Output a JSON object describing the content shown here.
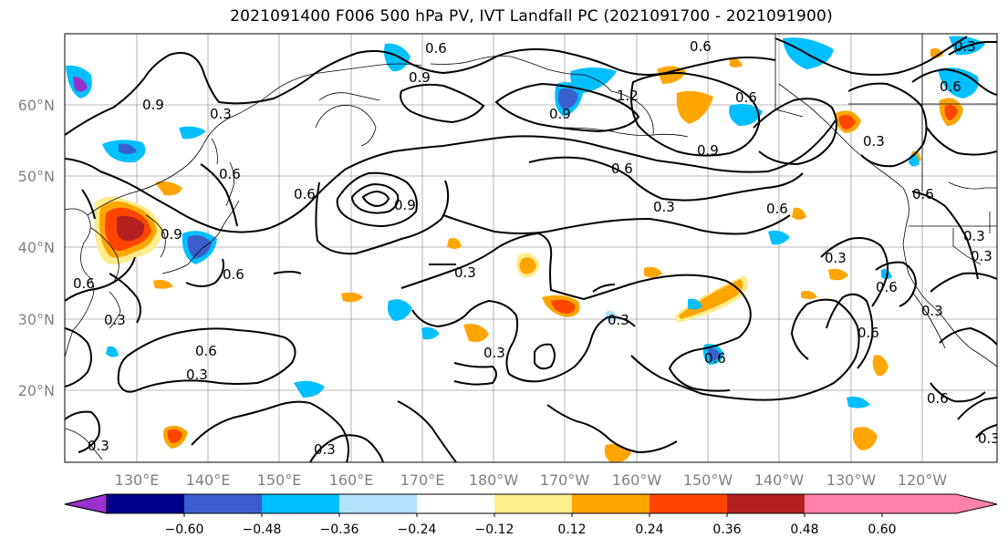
{
  "title": "2021091400 F006 500 hPa PV, IVT Landfall PC (2021091700 - 2021091900)",
  "map": {
    "lat_labels": [
      "60°N",
      "50°N",
      "40°N",
      "30°N",
      "20°N"
    ],
    "lon_labels": [
      "130°E",
      "140°E",
      "150°E",
      "160°E",
      "170°E",
      "180°W",
      "170°W",
      "160°W",
      "150°W",
      "140°W",
      "130°W",
      "120°W"
    ],
    "contour_labels": [
      {
        "text": "0.9"
      },
      {
        "text": "0.6"
      },
      {
        "text": "0.9"
      },
      {
        "text": "1.2"
      },
      {
        "text": "0.9"
      },
      {
        "text": "0.6"
      },
      {
        "text": "0.9"
      },
      {
        "text": "0.3"
      },
      {
        "text": "0.6"
      },
      {
        "text": "0.6"
      },
      {
        "text": "0.9"
      },
      {
        "text": "0.3"
      },
      {
        "text": "0.6"
      },
      {
        "text": "0.3"
      },
      {
        "text": "0.6"
      },
      {
        "text": "0.3"
      },
      {
        "text": "0.6"
      },
      {
        "text": "0.3"
      },
      {
        "text": "0.6"
      },
      {
        "text": "0.3"
      },
      {
        "text": "0.6"
      },
      {
        "text": "0.3"
      },
      {
        "text": "0.3"
      },
      {
        "text": "0.6"
      },
      {
        "text": "0.3"
      },
      {
        "text": "0.6"
      },
      {
        "text": "0.3"
      },
      {
        "text": "0.6"
      },
      {
        "text": "0.3"
      },
      {
        "text": "0.3"
      },
      {
        "text": "0.6"
      },
      {
        "text": "0.3"
      },
      {
        "text": "0.9"
      },
      {
        "text": "0.6"
      },
      {
        "text": "0.3"
      },
      {
        "text": "0.6"
      },
      {
        "text": "0.3"
      },
      {
        "text": "0.6"
      },
      {
        "text": "0.3"
      }
    ]
  },
  "colorbar": {
    "tick_labels": [
      "−0.60",
      "−0.48",
      "−0.36",
      "−0.24",
      "−0.12",
      "0.12",
      "0.24",
      "0.36",
      "0.48",
      "0.60"
    ],
    "colors": [
      "#9932cc",
      "#00008b",
      "#3a5fcd",
      "#00bfff",
      "#b0e2ff",
      "#ffffff",
      "#ffec8b",
      "#ffa500",
      "#ff4500",
      "#b22222",
      "#ff82ab"
    ]
  }
}
